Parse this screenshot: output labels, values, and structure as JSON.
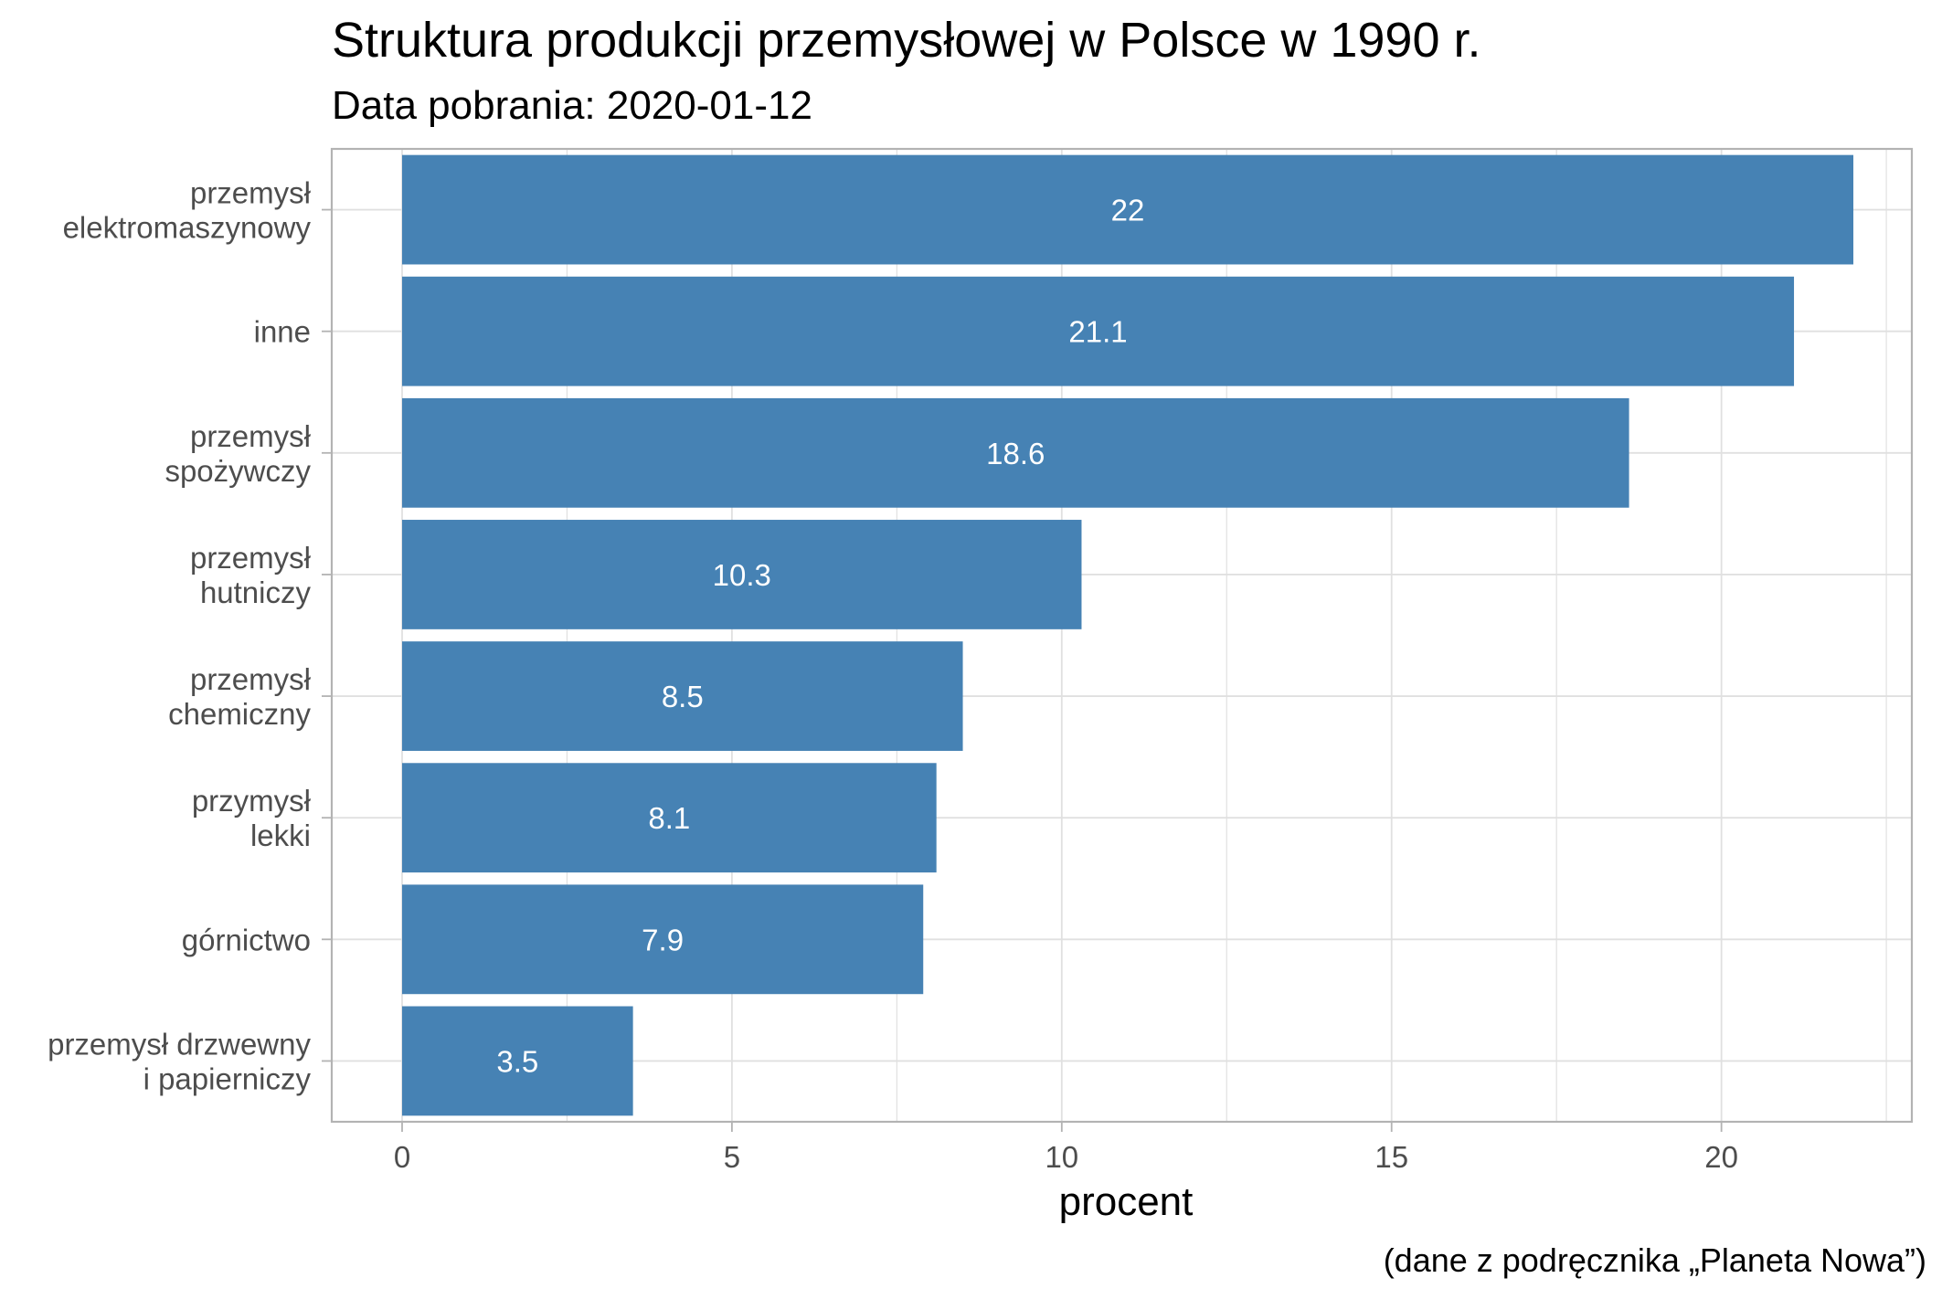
{
  "chart_data": {
    "type": "bar",
    "orientation": "horizontal",
    "title": "Struktura produkcji przemysłowej w Polsce w 1990 r.",
    "subtitle": "Data pobrania: 2020-01-12",
    "caption": "(dane z podręcznika „Planeta Nowa”)",
    "xlabel": "procent",
    "ylabel": "",
    "xlim": [
      0,
      23
    ],
    "x_ticks": [
      0,
      5,
      10,
      15,
      20
    ],
    "grid": true,
    "legend": "none",
    "categories": [
      [
        "przemysł",
        "elektromaszynowy"
      ],
      [
        "inne"
      ],
      [
        "przemysł",
        "spożywczy"
      ],
      [
        "przemysł",
        "hutniczy"
      ],
      [
        "przemysł",
        "chemiczny"
      ],
      [
        "przymysł",
        "lekki"
      ],
      [
        "górnictwo"
      ],
      [
        "przemysł drzwewny",
        "i papierniczy"
      ]
    ],
    "values": [
      22,
      21.1,
      18.6,
      10.3,
      8.5,
      8.1,
      7.9,
      3.5
    ],
    "data_labels": [
      "22",
      "21.1",
      "18.6",
      "10.3",
      "8.5",
      "8.1",
      "7.9",
      "3.5"
    ],
    "colors": {
      "bar": "#4682B4",
      "bar_label": "#FFFFFF",
      "grid": "#E0E0E0",
      "panel_border": "#B3B3B3",
      "axis_text": "#4D4D4D",
      "title": "#000000"
    }
  }
}
